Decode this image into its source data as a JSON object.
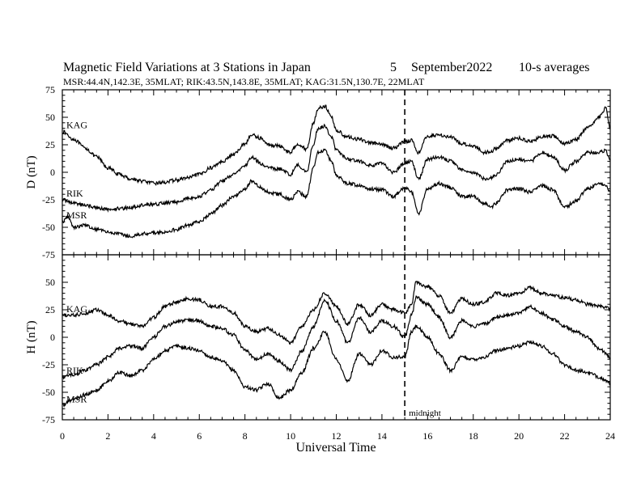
{
  "header": {
    "title": "Magnetic Field Variations at 3 Stations in Japan",
    "day": "5",
    "month_year": "September2022",
    "averaging": "10-s averages",
    "stations_line": "MSR:44.4N,142.3E, 35MLAT;  RIK:43.5N,143.8E, 35MLAT;  KAG:31.5N,130.7E, 22MLAT"
  },
  "chart_data": [
    {
      "type": "line",
      "ylabel": "D (nT)",
      "ylim": [
        -75,
        75
      ],
      "xlim": [
        0,
        24
      ],
      "yticks": [
        "75",
        "50",
        "25",
        "0",
        "-25",
        "-50",
        "-75"
      ],
      "series": [
        {
          "name": "KAG",
          "x": [
            0,
            0.5,
            1,
            1.5,
            2,
            2.5,
            3,
            3.5,
            4,
            4.5,
            5,
            5.5,
            6,
            6.5,
            7,
            7.5,
            8,
            8.3,
            8.7,
            9,
            9.5,
            10,
            10.3,
            10.7,
            11,
            11.2,
            11.5,
            11.8,
            12,
            12.5,
            13,
            13.5,
            14,
            14.5,
            15,
            15.3,
            15.6,
            16,
            16.5,
            17,
            17.5,
            18,
            18.5,
            18.8,
            19,
            19.5,
            20,
            20.5,
            21,
            21.5,
            22,
            22.5,
            23,
            23.5,
            23.8,
            24
          ],
          "y": [
            37,
            30,
            22,
            14,
            4,
            -2,
            -6,
            -8,
            -10,
            -9,
            -7,
            -5,
            -2,
            4,
            10,
            16,
            26,
            34,
            31,
            25,
            24,
            18,
            26,
            21,
            45,
            58,
            60,
            50,
            38,
            32,
            30,
            27,
            25,
            22,
            28,
            29,
            18,
            33,
            34,
            32,
            26,
            24,
            18,
            19,
            22,
            29,
            31,
            28,
            32,
            33,
            26,
            30,
            40,
            50,
            58,
            40
          ]
        },
        {
          "name": "RIK",
          "x": [
            0,
            0.5,
            1,
            1.5,
            2,
            2.5,
            3,
            3.5,
            4,
            4.5,
            5,
            5.5,
            6,
            6.5,
            7,
            7.5,
            8,
            8.3,
            8.7,
            9,
            9.5,
            10,
            10.3,
            10.7,
            11,
            11.2,
            11.5,
            11.8,
            12,
            12.5,
            13,
            13.5,
            14,
            14.5,
            15,
            15.3,
            15.6,
            16,
            16.5,
            17,
            17.5,
            18,
            18.5,
            18.8,
            19,
            19.5,
            20,
            20.5,
            21,
            21.5,
            22,
            22.5,
            23,
            23.5,
            23.8,
            24
          ],
          "y": [
            -25,
            -28,
            -30,
            -32,
            -34,
            -33,
            -32,
            -30,
            -29,
            -28,
            -27,
            -24,
            -22,
            -16,
            -8,
            -2,
            6,
            14,
            8,
            4,
            3,
            -2,
            7,
            0,
            26,
            40,
            42,
            32,
            20,
            12,
            10,
            6,
            8,
            0,
            8,
            10,
            -6,
            12,
            14,
            10,
            2,
            0,
            -6,
            -5,
            -2,
            10,
            12,
            10,
            18,
            14,
            2,
            10,
            18,
            18,
            20,
            10
          ]
        },
        {
          "name": "MSR",
          "x": [
            0,
            0.25,
            0.5,
            1,
            1.5,
            2,
            2.5,
            3,
            3.5,
            4,
            4.5,
            5,
            5.5,
            6,
            6.5,
            7,
            7.5,
            8,
            8.3,
            8.7,
            9,
            9.5,
            10,
            10.3,
            10.7,
            11,
            11.2,
            11.5,
            11.8,
            12,
            12.5,
            13,
            13.5,
            14,
            14.5,
            15,
            15.3,
            15.6,
            16,
            16.5,
            17,
            17.5,
            18,
            18.5,
            18.8,
            19,
            19.5,
            20,
            20.5,
            21,
            21.5,
            22,
            22.5,
            23,
            23.5,
            23.8,
            24
          ],
          "y": [
            -45,
            -40,
            -50,
            -48,
            -52,
            -54,
            -56,
            -58,
            -56,
            -55,
            -54,
            -52,
            -48,
            -45,
            -38,
            -30,
            -22,
            -15,
            -8,
            -14,
            -18,
            -20,
            -25,
            -18,
            -22,
            5,
            18,
            20,
            10,
            -3,
            -10,
            -12,
            -15,
            -16,
            -22,
            -14,
            -18,
            -38,
            -15,
            -10,
            -14,
            -22,
            -22,
            -28,
            -32,
            -28,
            -16,
            -15,
            -18,
            -12,
            -16,
            -32,
            -26,
            -15,
            -10,
            -12,
            -18
          ]
        }
      ]
    },
    {
      "type": "line",
      "ylabel": "H (nT)",
      "ylim": [
        -75,
        75
      ],
      "xlim": [
        0,
        24
      ],
      "yticks": [
        "",
        "50",
        "25",
        "0",
        "-25",
        "-50",
        "-75"
      ],
      "series": [
        {
          "name": "KAG",
          "x": [
            0,
            0.5,
            1,
            1.5,
            2,
            2.5,
            3,
            3.5,
            4,
            4.5,
            5,
            5.5,
            6,
            6.5,
            7,
            7.5,
            8,
            8.5,
            9,
            9.5,
            10,
            10.5,
            11,
            11.5,
            12,
            12.5,
            13,
            13.5,
            14,
            14.5,
            15,
            15.3,
            15.5,
            16,
            16.5,
            17,
            17.5,
            18,
            18.5,
            19,
            19.5,
            20,
            20.5,
            21,
            21.5,
            22,
            22.5,
            23,
            23.5,
            24
          ],
          "y": [
            20,
            20,
            22,
            25,
            20,
            15,
            12,
            10,
            18,
            28,
            32,
            35,
            34,
            28,
            28,
            22,
            10,
            5,
            8,
            2,
            -5,
            10,
            25,
            40,
            28,
            12,
            30,
            20,
            30,
            25,
            22,
            30,
            50,
            46,
            38,
            22,
            35,
            30,
            32,
            40,
            38,
            40,
            45,
            40,
            38,
            36,
            34,
            30,
            28,
            26
          ]
        },
        {
          "name": "RIK",
          "x": [
            0,
            0.5,
            1,
            1.5,
            2,
            2.5,
            3,
            3.5,
            4,
            4.5,
            5,
            5.5,
            6,
            6.5,
            7,
            7.5,
            8,
            8.5,
            9,
            9.5,
            10,
            10.5,
            11,
            11.5,
            12,
            12.5,
            13,
            13.5,
            14,
            14.5,
            15,
            15.3,
            15.5,
            16,
            16.5,
            17,
            17.5,
            18,
            18.5,
            19,
            19.5,
            20,
            20.5,
            21,
            21.5,
            22,
            22.5,
            23,
            23.5,
            24
          ],
          "y": [
            -36,
            -34,
            -30,
            -25,
            -18,
            -10,
            -8,
            -10,
            0,
            10,
            14,
            16,
            15,
            10,
            8,
            2,
            -12,
            -20,
            -15,
            -22,
            -30,
            -12,
            10,
            34,
            15,
            -5,
            18,
            5,
            15,
            10,
            0,
            20,
            36,
            30,
            18,
            0,
            15,
            10,
            12,
            18,
            20,
            22,
            28,
            22,
            16,
            10,
            5,
            0,
            -10,
            -18
          ]
        },
        {
          "name": "MSR",
          "x": [
            0,
            0.3,
            0.6,
            1,
            1.5,
            2,
            2.5,
            3,
            3.5,
            4,
            4.5,
            5,
            5.5,
            6,
            6.5,
            7,
            7.5,
            8,
            8.5,
            9,
            9.5,
            10,
            10.5,
            11,
            11.5,
            12,
            12.5,
            13,
            13.5,
            14,
            14.5,
            15,
            15.3,
            15.5,
            16,
            16.5,
            17,
            17.5,
            18,
            18.5,
            19,
            19.5,
            20,
            20.5,
            21,
            21.5,
            22,
            22.5,
            23,
            23.5,
            24
          ],
          "y": [
            -62,
            -58,
            -55,
            -52,
            -48,
            -40,
            -32,
            -35,
            -30,
            -20,
            -12,
            -8,
            -10,
            -12,
            -18,
            -22,
            -30,
            -45,
            -48,
            -42,
            -55,
            -48,
            -32,
            -10,
            5,
            -20,
            -40,
            -15,
            -25,
            -12,
            -18,
            -18,
            5,
            10,
            0,
            -15,
            -30,
            -18,
            -20,
            -18,
            -12,
            -10,
            -8,
            -4,
            -8,
            -15,
            -25,
            -30,
            -32,
            -36,
            -42
          ]
        }
      ]
    }
  ],
  "x_axis": {
    "label": "Universal Time",
    "ticks": [
      "0",
      "2",
      "4",
      "6",
      "8",
      "10",
      "12",
      "14",
      "16",
      "18",
      "20",
      "22",
      "24"
    ]
  },
  "annotation": {
    "text": "midnight",
    "x": 15
  }
}
